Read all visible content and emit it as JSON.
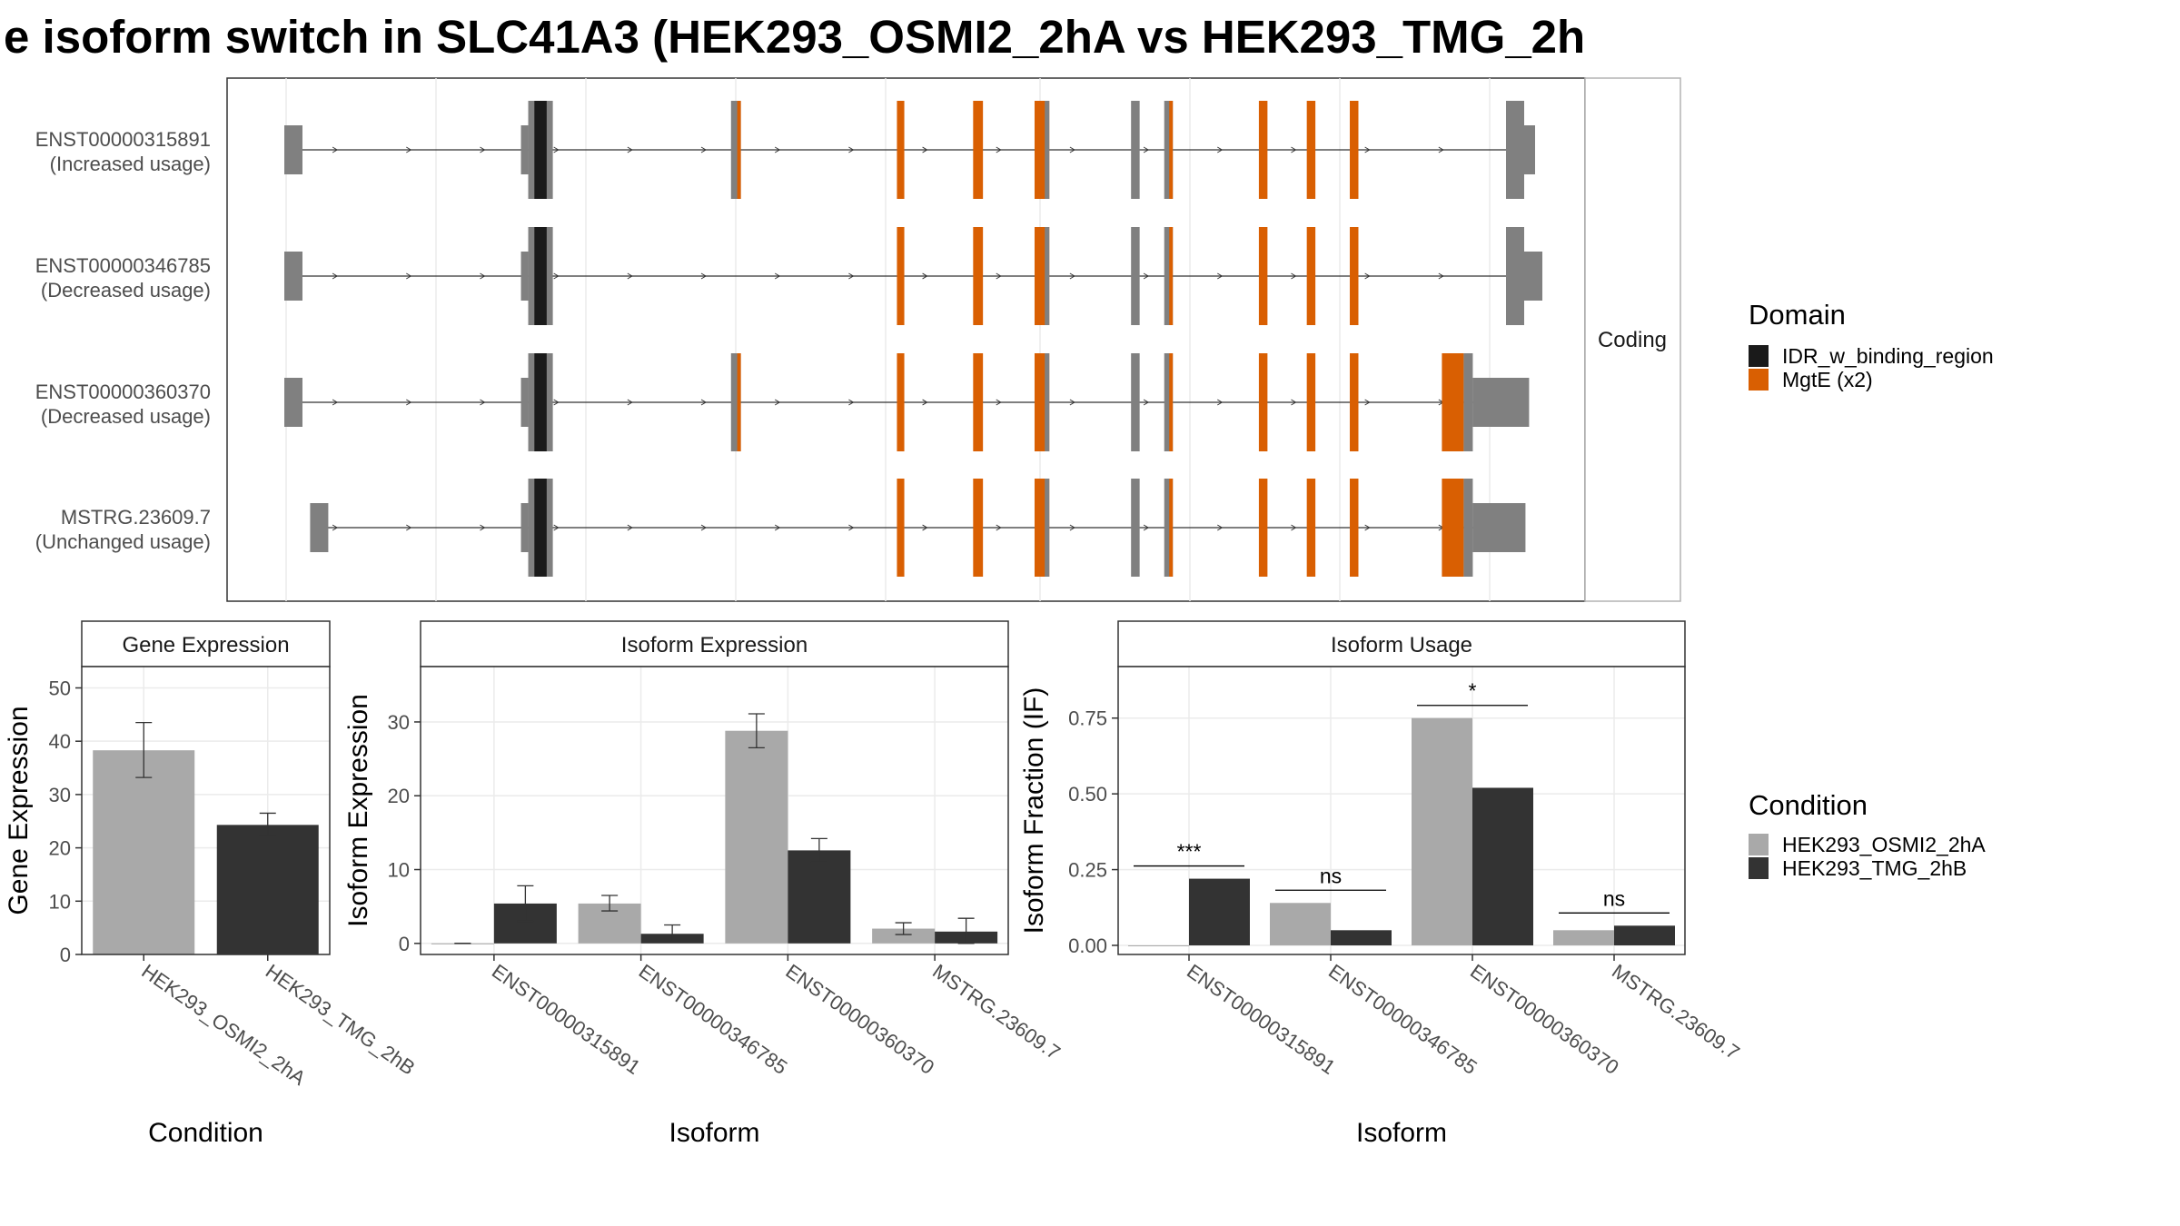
{
  "chart_data": [
    {
      "type": "gene_structure",
      "title": "e isoform switch in SLC41A3 (HEK293_OSMI2_2hA vs HEK293_TMG_2h",
      "facet_label": "Coding",
      "transcripts": [
        {
          "id": "ENST00000315891",
          "usage": "(Increased usage)",
          "start": 0.0,
          "end": 1.0,
          "end_utr": 0.018
        },
        {
          "id": "ENST00000346785",
          "usage": "(Decreased usage)",
          "start": 0.0,
          "end": 1.0,
          "end_utr": 0.025
        },
        {
          "id": "ENST00000360370",
          "usage": "(Decreased usage)",
          "start": 0.0,
          "end": 0.97,
          "end_utr": 0.048
        },
        {
          "id": "MSTRG.23609.7",
          "usage": "(Unchanged usage)",
          "start": 0.021,
          "end": 0.97,
          "end_utr": 0.045
        }
      ],
      "domain_legend": {
        "title": "Domain",
        "items": [
          {
            "label": "IDR_w_binding_region",
            "color": "#1a1a1a"
          },
          {
            "label": "MgtE (x2)",
            "color": "#d95f02"
          }
        ]
      }
    },
    {
      "type": "bar",
      "strip": "Gene Expression",
      "ylabel": "Gene Expression",
      "xlabel": "Condition",
      "categories": [
        "HEK293_OSMI2_2hA",
        "HEK293_TMG_2hB"
      ],
      "values": [
        38.3,
        24.3
      ],
      "errors": [
        [
          33.2,
          43.5
        ],
        [
          22.3,
          26.5
        ]
      ],
      "ylim": [
        0,
        54
      ],
      "yticks": [
        0,
        10,
        20,
        30,
        40,
        50
      ]
    },
    {
      "type": "bar",
      "strip": "Isoform Expression",
      "ylabel": "Isoform Expression",
      "xlabel": "Isoform",
      "categories": [
        "ENST00000315891",
        "ENST00000346785",
        "ENST00000360370",
        "MSTRG.23609.7"
      ],
      "series": [
        {
          "condition": "HEK293_OSMI2_2hA",
          "values": [
            0.0,
            5.4,
            28.8,
            2.0
          ],
          "errors": [
            [
              0.0,
              0.0
            ],
            [
              4.4,
              6.5
            ],
            [
              26.5,
              31.1
            ],
            [
              1.2,
              2.8
            ]
          ]
        },
        {
          "condition": "HEK293_TMG_2hB",
          "values": [
            5.4,
            1.3,
            12.6,
            1.6
          ],
          "errors": [
            [
              3.0,
              7.8
            ],
            [
              0.2,
              2.5
            ],
            [
              11.0,
              14.2
            ],
            [
              0.0,
              3.4
            ]
          ]
        }
      ],
      "ylim": [
        -1.5,
        37.5
      ],
      "yticks": [
        0,
        10,
        20,
        30
      ]
    },
    {
      "type": "bar",
      "strip": "Isoform Usage",
      "ylabel": "Isoform Fraction (IF)",
      "xlabel": "Isoform",
      "categories": [
        "ENST00000315891",
        "ENST00000346785",
        "ENST00000360370",
        "MSTRG.23609.7"
      ],
      "series": [
        {
          "condition": "HEK293_OSMI2_2hA",
          "values": [
            0.0,
            0.14,
            0.75,
            0.05
          ]
        },
        {
          "condition": "HEK293_TMG_2hB",
          "values": [
            0.22,
            0.05,
            0.52,
            0.065
          ]
        }
      ],
      "significance": [
        "***",
        "ns",
        "*",
        "ns"
      ],
      "ylim": [
        -0.03,
        0.92
      ],
      "yticks": [
        "0.00",
        "0.25",
        "0.50",
        "0.75"
      ]
    }
  ],
  "condition_legend": {
    "title": "Condition",
    "items": [
      {
        "label": "HEK293_OSMI2_2hA",
        "color": "#a9a9a9"
      },
      {
        "label": "HEK293_TMG_2hB",
        "color": "#333333"
      }
    ]
  },
  "colors": {
    "utr": "#808080",
    "cds": "#808080",
    "idr": "#1a1a1a",
    "mgte": "#d95f02",
    "cond_a": "#a9a9a9",
    "cond_b": "#333333"
  }
}
